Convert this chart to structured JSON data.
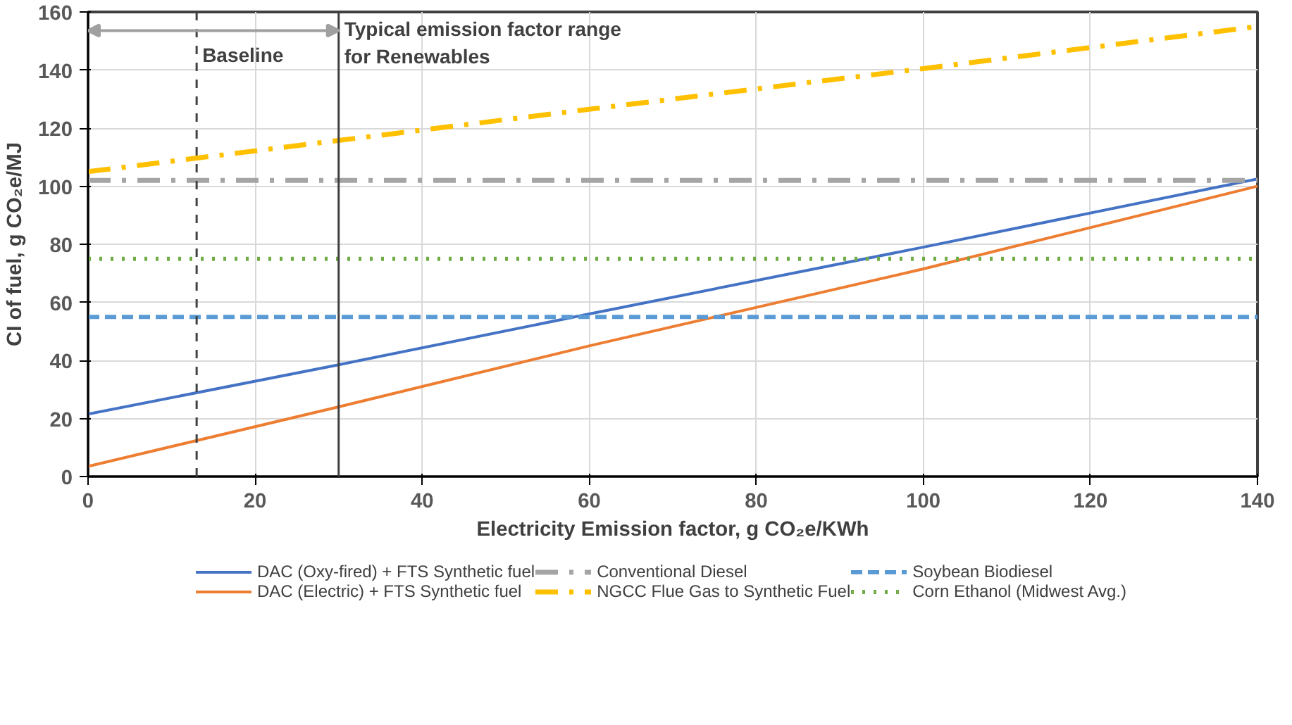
{
  "chart_data": {
    "type": "line",
    "xlabel": "Electricity Emission factor, g CO₂e/KWh",
    "ylabel": "CI of fuel, g CO₂e/MJ",
    "xlim": [
      0,
      140
    ],
    "ylim": [
      0,
      160
    ],
    "xticks": [
      0,
      20,
      40,
      60,
      80,
      100,
      120,
      140
    ],
    "yticks": [
      0,
      20,
      40,
      60,
      80,
      100,
      120,
      140,
      160
    ],
    "grid": true,
    "legend": "bottom",
    "line_style": "solid",
    "series": [
      {
        "name": "DAC (Oxy-fired) + FTS Synthetic fuel",
        "color": "#4472c4",
        "x": [
          0,
          30,
          60,
          100,
          140
        ],
        "values": [
          21.5,
          38.5,
          56,
          79,
          102.5
        ]
      },
      {
        "name": "DAC (Electric) + FTS Synthetic fuel",
        "color": "#ed7d31",
        "x": [
          0,
          30,
          60,
          100,
          140
        ],
        "values": [
          3.5,
          24,
          45,
          71.5,
          100
        ]
      },
      {
        "name": "Conventional Diesel",
        "color": "#a5a5a5",
        "x": [
          0,
          140
        ],
        "values": [
          102,
          102
        ],
        "line_style": "dashdot"
      },
      {
        "name": "NGCC Flue Gas to Synthetic Fuel",
        "color": "#ffc000",
        "x": [
          0,
          60,
          100,
          140
        ],
        "values": [
          105,
          126.5,
          140.5,
          155
        ],
        "line_style": "dashdot"
      },
      {
        "name": "Soybean Biodiesel",
        "color": "#5b9bd5",
        "x": [
          0,
          140
        ],
        "values": [
          55,
          55
        ],
        "line_style": "dashed"
      },
      {
        "name": "Corn Ethanol (Midwest Avg.)",
        "color": "#70ad47",
        "x": [
          0,
          140
        ],
        "values": [
          75,
          75
        ],
        "line_style": "dotted"
      }
    ],
    "ref_lines": [
      {
        "axis": "x",
        "value": 13,
        "label": "Baseline",
        "line_style": "dashed",
        "color": "#404040"
      },
      {
        "axis": "x",
        "value": 30,
        "label": "Typical emission factor range for Renewables",
        "line_style": "solid",
        "color": "#404040"
      }
    ]
  }
}
